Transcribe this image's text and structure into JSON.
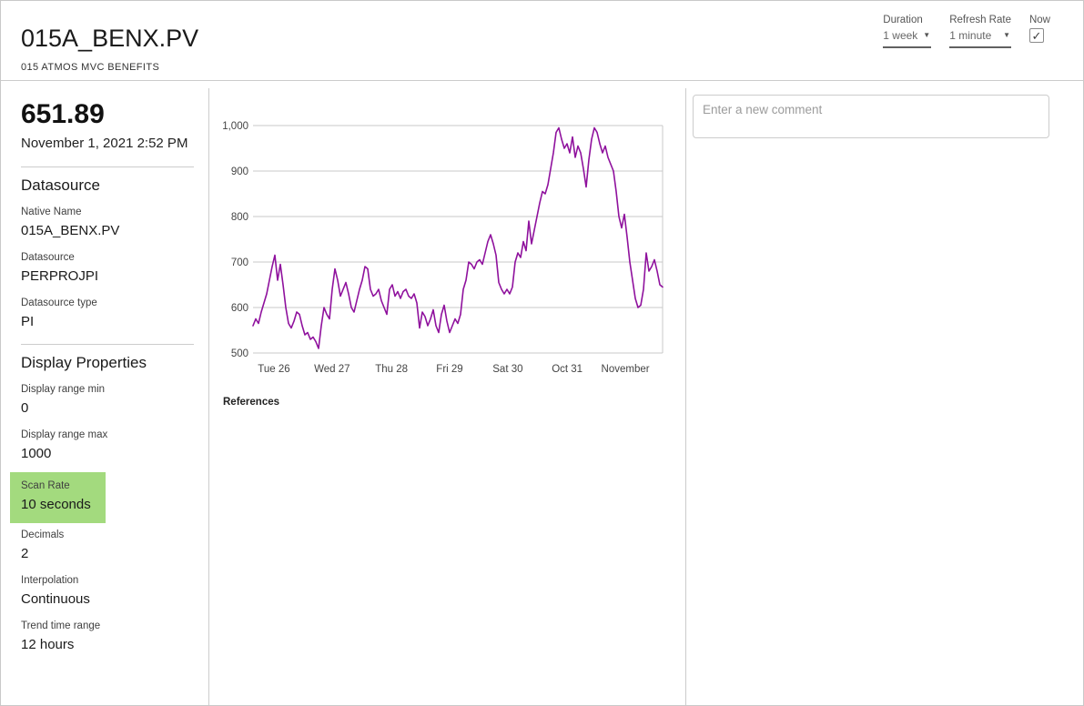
{
  "header": {
    "title": "015A_BENX.PV",
    "subtitle": "015 ATMOS MVC BENEFITS"
  },
  "controls": {
    "duration_label": "Duration",
    "duration_value": "1 week",
    "refresh_label": "Refresh Rate",
    "refresh_value": "1 minute",
    "now_label": "Now",
    "now_checked": true,
    "caret_icon": "▼"
  },
  "summary": {
    "value": "651.89",
    "timestamp": "November 1, 2021 2:52 PM"
  },
  "datasource": {
    "heading": "Datasource",
    "fields": [
      {
        "label": "Native Name",
        "value": "015A_BENX.PV"
      },
      {
        "label": "Datasource",
        "value": "PERPROJPI"
      },
      {
        "label": "Datasource type",
        "value": "PI"
      }
    ]
  },
  "display_properties": {
    "heading": "Display Properties",
    "fields": [
      {
        "label": "Display range min",
        "value": "0"
      },
      {
        "label": "Display range max",
        "value": "1000"
      },
      {
        "label": "Scan Rate",
        "value": "10 seconds",
        "highlighted": true
      },
      {
        "label": "Decimals",
        "value": "2"
      },
      {
        "label": "Interpolation",
        "value": "Continuous"
      },
      {
        "label": "Trend time range",
        "value": "12 hours"
      }
    ]
  },
  "references": {
    "label": "References"
  },
  "comments": {
    "placeholder": "Enter a new comment"
  },
  "colors": {
    "trend_line": "#8f119d",
    "highlight_green": "#a3da7e",
    "grid": "#c9c9c9",
    "axis_text": "#444444"
  },
  "chart_data": {
    "type": "line",
    "title": "",
    "xlabel": "",
    "ylabel": "",
    "ylim": [
      500,
      1000
    ],
    "grid": true,
    "legend": "none",
    "yticks": [
      {
        "value": 1000,
        "label": "1,000"
      },
      {
        "value": 900,
        "label": "900"
      },
      {
        "value": 800,
        "label": "800"
      },
      {
        "value": 700,
        "label": "700"
      },
      {
        "value": 600,
        "label": "600"
      },
      {
        "value": 500,
        "label": "500"
      }
    ],
    "xticks": [
      {
        "pos": 0.051,
        "label": "Tue 26"
      },
      {
        "pos": 0.193,
        "label": "Wed 27"
      },
      {
        "pos": 0.338,
        "label": "Thu 28"
      },
      {
        "pos": 0.48,
        "label": "Fri 29"
      },
      {
        "pos": 0.622,
        "label": "Sat 30"
      },
      {
        "pos": 0.767,
        "label": "Oct 31"
      },
      {
        "pos": 0.909,
        "label": "November"
      }
    ],
    "series": [
      {
        "name": "015A_BENX.PV",
        "color": "#8f119d",
        "values": [
          560,
          575,
          565,
          590,
          610,
          630,
          660,
          690,
          715,
          660,
          695,
          650,
          600,
          565,
          555,
          570,
          590,
          585,
          560,
          540,
          545,
          530,
          535,
          525,
          510,
          560,
          600,
          585,
          575,
          640,
          685,
          660,
          625,
          640,
          655,
          630,
          600,
          590,
          615,
          640,
          660,
          690,
          685,
          640,
          625,
          630,
          640,
          615,
          600,
          585,
          640,
          650,
          625,
          635,
          620,
          635,
          640,
          625,
          620,
          630,
          610,
          555,
          590,
          580,
          560,
          575,
          595,
          560,
          545,
          585,
          605,
          570,
          545,
          560,
          575,
          565,
          585,
          640,
          660,
          700,
          695,
          685,
          700,
          705,
          695,
          720,
          745,
          760,
          740,
          715,
          655,
          640,
          630,
          640,
          630,
          645,
          700,
          720,
          710,
          745,
          725,
          790,
          740,
          770,
          800,
          830,
          855,
          850,
          870,
          905,
          940,
          985,
          995,
          970,
          950,
          960,
          940,
          975,
          930,
          955,
          940,
          905,
          865,
          925,
          970,
          995,
          985,
          960,
          940,
          955,
          930,
          915,
          900,
          855,
          800,
          775,
          805,
          755,
          700,
          660,
          620,
          600,
          605,
          640,
          720,
          680,
          690,
          705,
          680,
          650,
          645
        ]
      }
    ]
  }
}
